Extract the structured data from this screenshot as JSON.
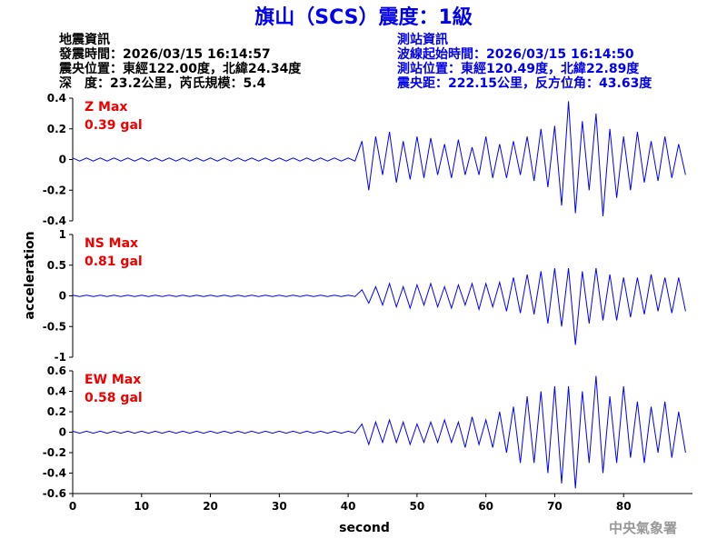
{
  "header": {
    "title": "旗山（SCS）震度：1級",
    "left": [
      "地震資訊",
      "發震時間：2026/03/15 16:14:57",
      "震央位置：東經122.00度，北緯24.34度",
      "深　度：23.2公里，芮氏規模：5.4"
    ],
    "right": [
      "測站資訊",
      "波線起始時間：2026/03/15 16:14:50",
      "測站位置：東經120.49度，北緯22.89度",
      "震央距：222.15公里，反方位角：43.63度"
    ],
    "ylabel": "acceleration",
    "watermark": "中央氣象署"
  },
  "chart_data": [
    {
      "type": "line",
      "annotations": [
        "Z Max",
        "0.39 gal"
      ],
      "color": "#0000ff",
      "xlim": [
        0,
        90
      ],
      "ylim": [
        -0.4,
        0.4
      ],
      "yticks": [
        0.4,
        0.2,
        0,
        -0.2,
        -0.4
      ],
      "x": [
        0,
        1,
        2,
        3,
        4,
        5,
        6,
        7,
        8,
        9,
        10,
        11,
        12,
        13,
        14,
        15,
        16,
        17,
        18,
        19,
        20,
        21,
        22,
        23,
        24,
        25,
        26,
        27,
        28,
        29,
        30,
        31,
        32,
        33,
        34,
        35,
        36,
        37,
        38,
        39,
        40,
        41,
        42,
        43,
        44,
        45,
        46,
        47,
        48,
        49,
        50,
        51,
        52,
        53,
        54,
        55,
        56,
        57,
        58,
        59,
        60,
        61,
        62,
        63,
        64,
        65,
        66,
        67,
        68,
        69,
        70,
        71,
        72,
        73,
        74,
        75,
        76,
        77,
        78,
        79,
        80,
        81,
        82,
        83,
        84,
        85,
        86,
        87,
        88,
        89
      ],
      "values": [
        0.01,
        -0.01,
        0.01,
        -0.01,
        0.01,
        -0.01,
        0.01,
        -0.01,
        0.01,
        -0.01,
        0.01,
        -0.01,
        0.01,
        -0.01,
        0.01,
        -0.01,
        0.01,
        -0.01,
        0.01,
        -0.01,
        0.01,
        -0.01,
        0.01,
        -0.01,
        0.01,
        -0.01,
        0.01,
        -0.01,
        0.01,
        -0.01,
        0.01,
        -0.01,
        0.01,
        -0.01,
        0.01,
        -0.01,
        0.01,
        -0.01,
        0.01,
        -0.01,
        0.01,
        -0.01,
        0.12,
        -0.2,
        0.15,
        -0.1,
        0.18,
        -0.15,
        0.12,
        -0.13,
        0.15,
        -0.12,
        0.14,
        -0.1,
        0.1,
        -0.12,
        0.13,
        -0.1,
        0.08,
        -0.1,
        0.15,
        -0.12,
        0.1,
        -0.12,
        0.12,
        -0.1,
        0.15,
        -0.14,
        0.2,
        -0.18,
        0.22,
        -0.3,
        0.38,
        -0.35,
        0.25,
        -0.2,
        0.3,
        -0.37,
        0.2,
        -0.25,
        0.15,
        -0.2,
        0.18,
        -0.15,
        0.12,
        -0.14,
        0.15,
        -0.12,
        0.1,
        -0.1
      ]
    },
    {
      "type": "line",
      "annotations": [
        "NS Max",
        "0.81 gal"
      ],
      "color": "#0000ff",
      "xlim": [
        0,
        90
      ],
      "ylim": [
        -1,
        1
      ],
      "yticks": [
        1,
        0.5,
        0,
        -0.5,
        -1
      ],
      "x": [
        0,
        1,
        2,
        3,
        4,
        5,
        6,
        7,
        8,
        9,
        10,
        11,
        12,
        13,
        14,
        15,
        16,
        17,
        18,
        19,
        20,
        21,
        22,
        23,
        24,
        25,
        26,
        27,
        28,
        29,
        30,
        31,
        32,
        33,
        34,
        35,
        36,
        37,
        38,
        39,
        40,
        41,
        42,
        43,
        44,
        45,
        46,
        47,
        48,
        49,
        50,
        51,
        52,
        53,
        54,
        55,
        56,
        57,
        58,
        59,
        60,
        61,
        62,
        63,
        64,
        65,
        66,
        67,
        68,
        69,
        70,
        71,
        72,
        73,
        74,
        75,
        76,
        77,
        78,
        79,
        80,
        81,
        82,
        83,
        84,
        85,
        86,
        87,
        88,
        89
      ],
      "values": [
        0.01,
        -0.01,
        0.01,
        -0.01,
        0.01,
        -0.01,
        0.01,
        -0.01,
        0.01,
        -0.01,
        0.01,
        -0.01,
        0.01,
        -0.01,
        0.01,
        -0.01,
        0.01,
        -0.01,
        0.01,
        -0.01,
        0.01,
        -0.01,
        0.01,
        -0.01,
        0.01,
        -0.01,
        0.01,
        -0.01,
        0.01,
        -0.01,
        0.01,
        -0.01,
        0.01,
        -0.01,
        0.01,
        -0.01,
        0.01,
        -0.01,
        0.01,
        -0.01,
        0.01,
        -0.01,
        0.1,
        -0.12,
        0.15,
        -0.15,
        0.2,
        -0.18,
        0.15,
        -0.2,
        0.18,
        -0.15,
        0.2,
        -0.18,
        0.15,
        -0.2,
        0.18,
        -0.15,
        0.2,
        -0.22,
        0.2,
        -0.18,
        0.22,
        -0.25,
        0.3,
        -0.28,
        0.35,
        -0.3,
        0.4,
        -0.45,
        0.45,
        -0.5,
        0.45,
        -0.8,
        0.4,
        -0.45,
        0.45,
        -0.4,
        0.35,
        -0.4,
        0.3,
        -0.35,
        0.3,
        -0.3,
        0.35,
        -0.25,
        0.3,
        -0.28,
        0.3,
        -0.25
      ]
    },
    {
      "type": "line",
      "annotations": [
        "EW Max",
        "0.58 gal"
      ],
      "color": "#0000ff",
      "xlabel": "second",
      "xlim": [
        0,
        90
      ],
      "xticks": [
        0,
        10,
        20,
        30,
        40,
        50,
        60,
        70,
        80
      ],
      "ylim": [
        -0.6,
        0.6
      ],
      "yticks": [
        0.6,
        0.4,
        0.2,
        0,
        -0.2,
        -0.4,
        -0.6
      ],
      "x": [
        0,
        1,
        2,
        3,
        4,
        5,
        6,
        7,
        8,
        9,
        10,
        11,
        12,
        13,
        14,
        15,
        16,
        17,
        18,
        19,
        20,
        21,
        22,
        23,
        24,
        25,
        26,
        27,
        28,
        29,
        30,
        31,
        32,
        33,
        34,
        35,
        36,
        37,
        38,
        39,
        40,
        41,
        42,
        43,
        44,
        45,
        46,
        47,
        48,
        49,
        50,
        51,
        52,
        53,
        54,
        55,
        56,
        57,
        58,
        59,
        60,
        61,
        62,
        63,
        64,
        65,
        66,
        67,
        68,
        69,
        70,
        71,
        72,
        73,
        74,
        75,
        76,
        77,
        78,
        79,
        80,
        81,
        82,
        83,
        84,
        85,
        86,
        87,
        88,
        89
      ],
      "values": [
        0.01,
        -0.01,
        0.01,
        -0.01,
        0.01,
        -0.01,
        0.01,
        -0.01,
        0.01,
        -0.01,
        0.01,
        -0.01,
        0.01,
        -0.01,
        0.01,
        -0.01,
        0.01,
        -0.01,
        0.01,
        -0.01,
        0.01,
        -0.01,
        0.01,
        -0.01,
        0.01,
        -0.01,
        0.01,
        -0.01,
        0.01,
        -0.01,
        0.01,
        -0.01,
        0.01,
        -0.01,
        0.01,
        -0.01,
        0.01,
        -0.01,
        0.01,
        -0.01,
        0.01,
        -0.01,
        0.08,
        -0.12,
        0.1,
        -0.1,
        0.12,
        -0.1,
        0.1,
        -0.12,
        0.08,
        -0.1,
        0.1,
        -0.1,
        0.12,
        -0.1,
        0.1,
        -0.15,
        0.15,
        -0.12,
        0.12,
        -0.15,
        0.2,
        -0.2,
        0.25,
        -0.3,
        0.35,
        -0.3,
        0.4,
        -0.4,
        0.45,
        -0.5,
        0.45,
        -0.55,
        0.4,
        -0.3,
        0.55,
        -0.4,
        0.35,
        -0.3,
        0.45,
        -0.25,
        0.3,
        -0.3,
        0.25,
        -0.2,
        0.3,
        -0.25,
        0.2,
        -0.2
      ]
    }
  ]
}
